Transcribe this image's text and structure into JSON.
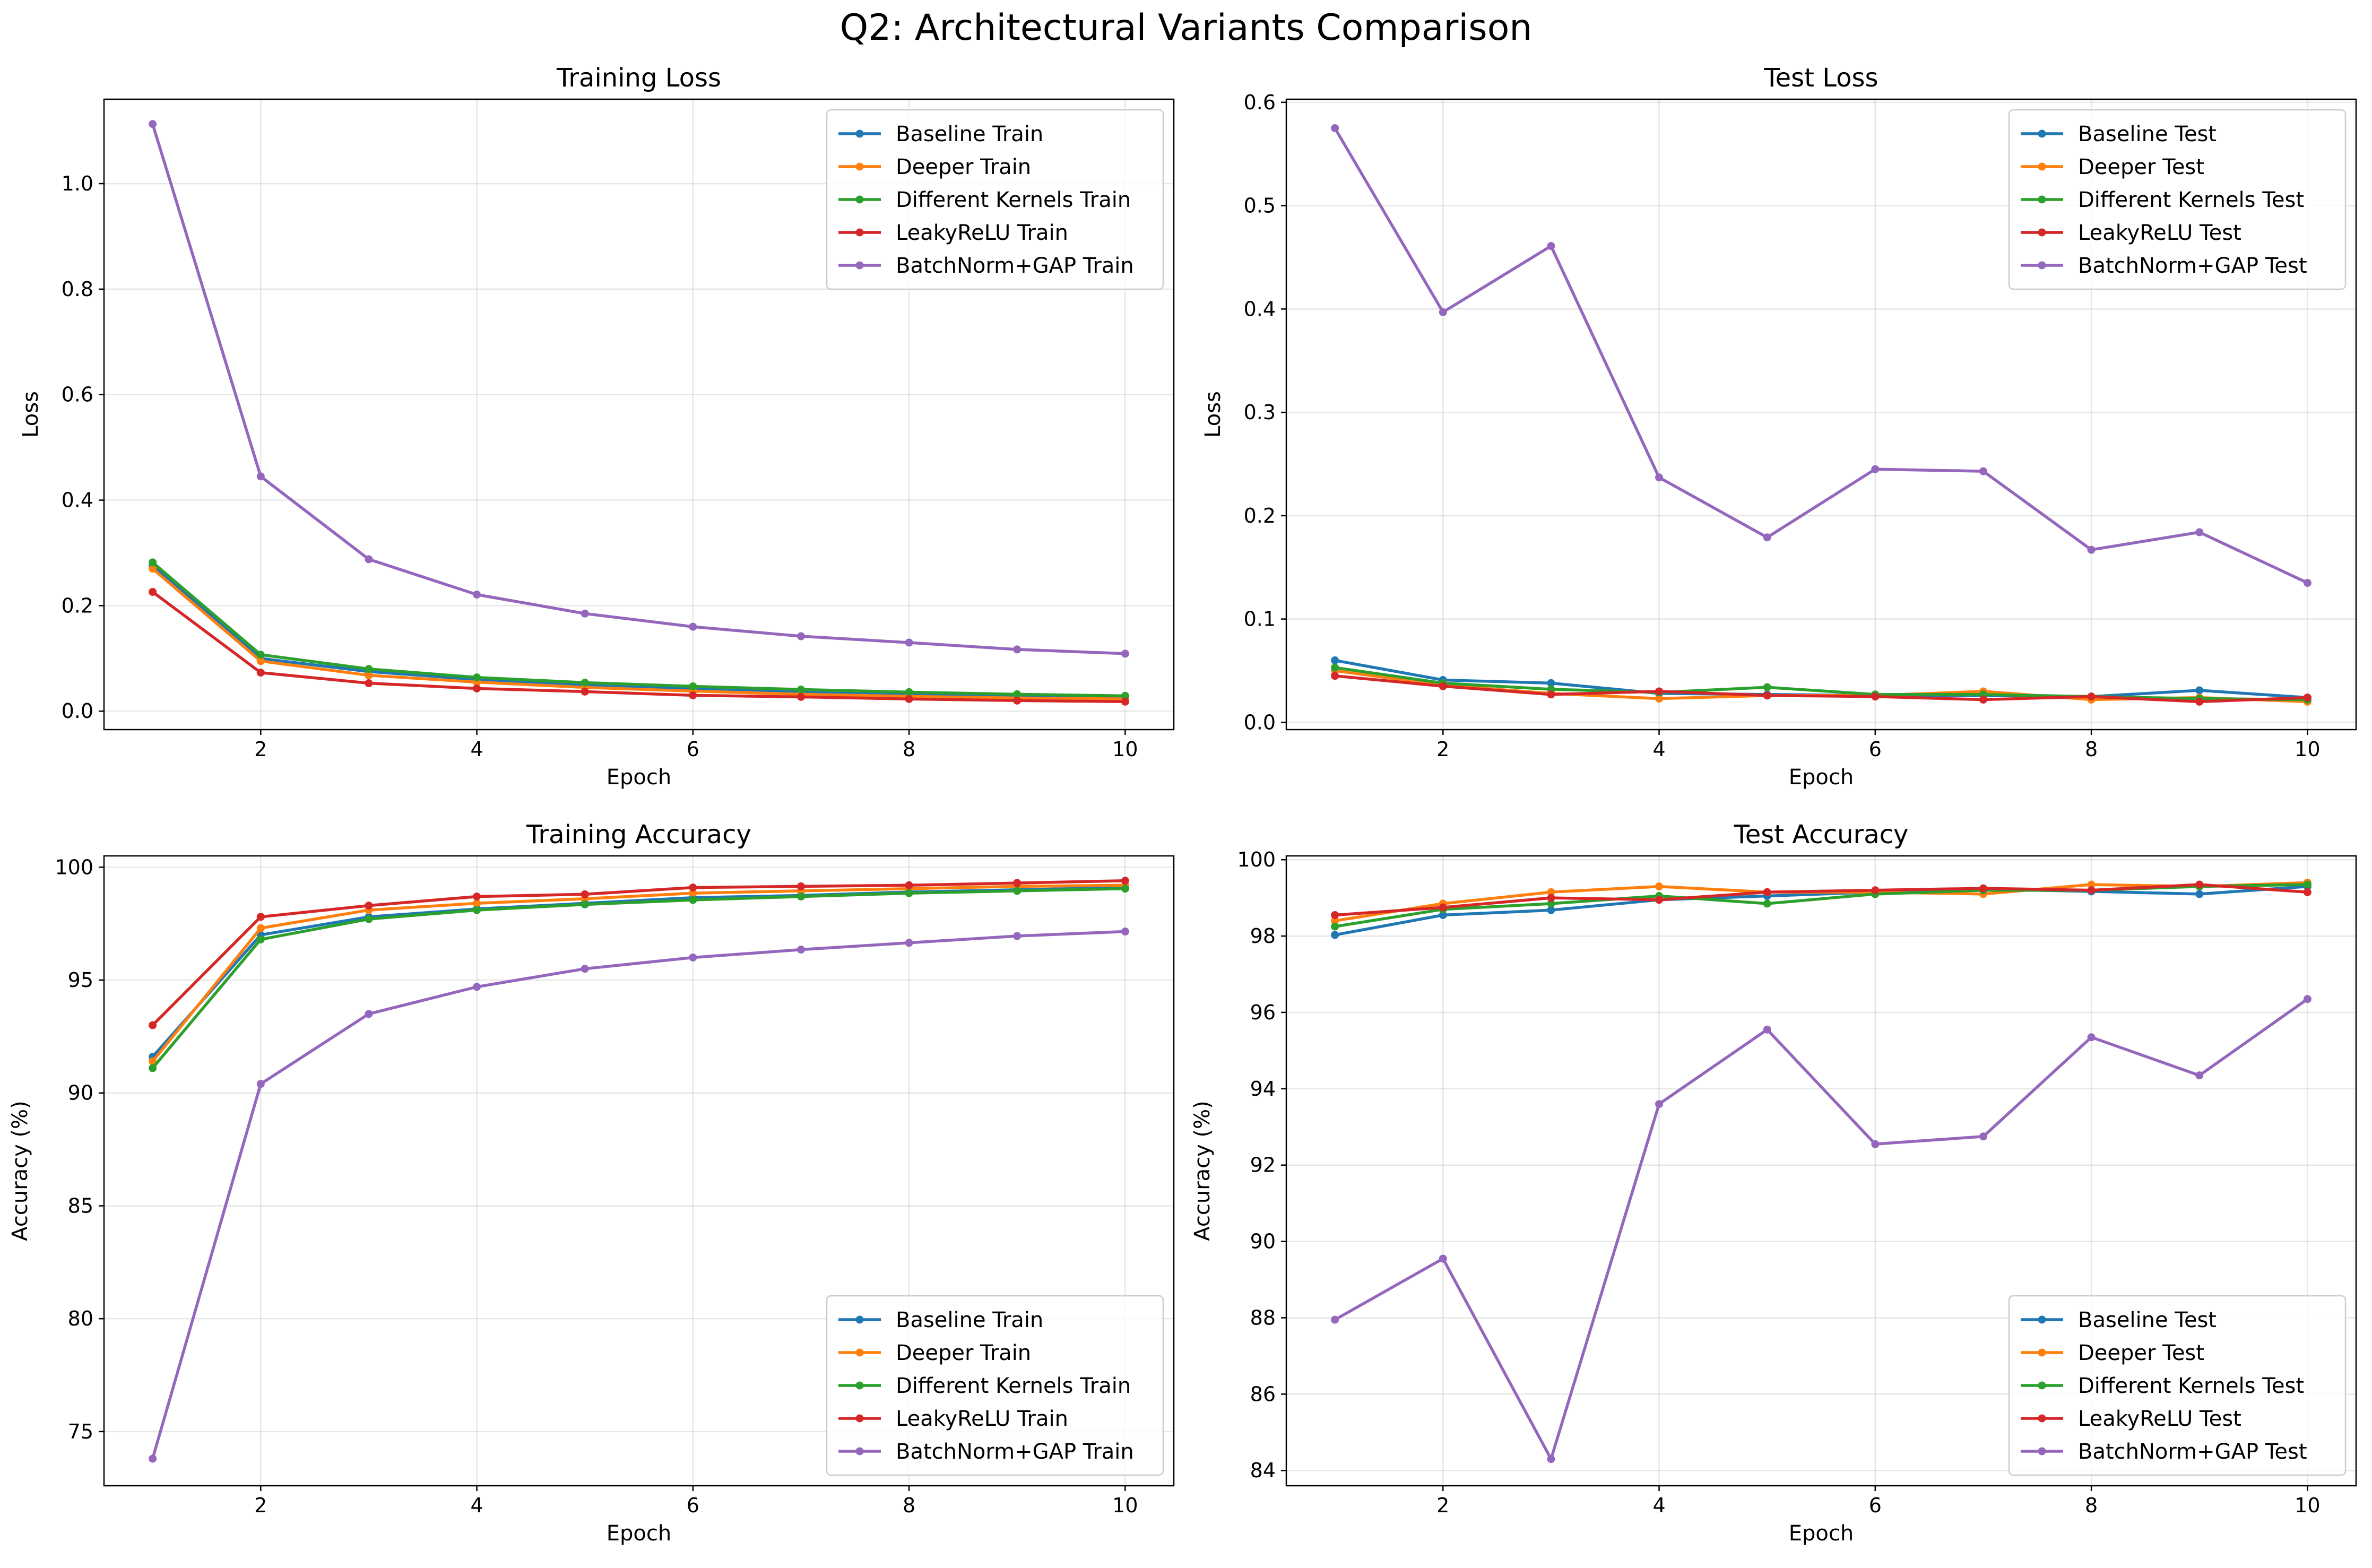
{
  "figure": {
    "title": "Q2: Architectural Variants Comparison"
  },
  "chart_data": [
    {
      "type": "line",
      "title": "Training Loss",
      "xlabel": "Epoch",
      "ylabel": "Loss",
      "x": [
        1,
        2,
        3,
        4,
        5,
        6,
        7,
        8,
        9,
        10
      ],
      "xlim": [
        0.55,
        10.45
      ],
      "ylim": [
        -0.035,
        1.16
      ],
      "xticks": [
        2,
        4,
        6,
        8,
        10
      ],
      "yticks": [
        0.0,
        0.2,
        0.4,
        0.6,
        0.8,
        1.0
      ],
      "ytick_labels": [
        "0.0",
        "0.2",
        "0.4",
        "0.6",
        "0.8",
        "1.0"
      ],
      "grid": true,
      "legend_position": "upper right",
      "series": [
        {
          "name": "Baseline Train",
          "color": "#1f77b4",
          "values": [
            0.275,
            0.1,
            0.075,
            0.06,
            0.05,
            0.043,
            0.037,
            0.032,
            0.028,
            0.025
          ]
        },
        {
          "name": "Deeper Train",
          "color": "#ff7f0e",
          "values": [
            0.27,
            0.095,
            0.068,
            0.055,
            0.045,
            0.038,
            0.032,
            0.028,
            0.025,
            0.023
          ]
        },
        {
          "name": "Different Kernels Train",
          "color": "#2ca02c",
          "values": [
            0.282,
            0.107,
            0.08,
            0.064,
            0.054,
            0.047,
            0.041,
            0.036,
            0.032,
            0.029
          ]
        },
        {
          "name": "LeakyReLU Train",
          "color": "#d62728",
          "values": [
            0.226,
            0.073,
            0.053,
            0.043,
            0.037,
            0.03,
            0.027,
            0.023,
            0.02,
            0.018
          ]
        },
        {
          "name": "BatchNorm+GAP Train",
          "color": "#9467bd",
          "values": [
            1.113,
            0.445,
            0.288,
            0.221,
            0.185,
            0.16,
            0.142,
            0.13,
            0.117,
            0.109
          ]
        }
      ]
    },
    {
      "type": "line",
      "title": "Test Loss",
      "xlabel": "Epoch",
      "ylabel": "Loss",
      "x": [
        1,
        2,
        3,
        4,
        5,
        6,
        7,
        8,
        9,
        10
      ],
      "xlim": [
        0.55,
        10.45
      ],
      "ylim": [
        -0.007,
        0.603
      ],
      "xticks": [
        2,
        4,
        6,
        8,
        10
      ],
      "yticks": [
        0.0,
        0.1,
        0.2,
        0.3,
        0.4,
        0.5,
        0.6
      ],
      "ytick_labels": [
        "0.0",
        "0.1",
        "0.2",
        "0.3",
        "0.4",
        "0.5",
        "0.6"
      ],
      "grid": true,
      "legend_position": "upper right",
      "series": [
        {
          "name": "Baseline Test",
          "color": "#1f77b4",
          "values": [
            0.06,
            0.041,
            0.038,
            0.028,
            0.027,
            0.026,
            0.026,
            0.025,
            0.031,
            0.024
          ]
        },
        {
          "name": "Deeper Test",
          "color": "#ff7f0e",
          "values": [
            0.05,
            0.036,
            0.028,
            0.023,
            0.026,
            0.026,
            0.03,
            0.022,
            0.024,
            0.02
          ]
        },
        {
          "name": "Different Kernels Test",
          "color": "#2ca02c",
          "values": [
            0.053,
            0.038,
            0.032,
            0.029,
            0.034,
            0.027,
            0.027,
            0.025,
            0.023,
            0.022
          ]
        },
        {
          "name": "LeakyReLU Test",
          "color": "#d62728",
          "values": [
            0.045,
            0.035,
            0.027,
            0.03,
            0.026,
            0.025,
            0.022,
            0.025,
            0.02,
            0.024
          ]
        },
        {
          "name": "BatchNorm+GAP Test",
          "color": "#9467bd",
          "values": [
            0.575,
            0.397,
            0.461,
            0.237,
            0.179,
            0.245,
            0.243,
            0.167,
            0.184,
            0.135
          ]
        }
      ]
    },
    {
      "type": "line",
      "title": "Training Accuracy",
      "xlabel": "Epoch",
      "ylabel": "Accuracy (%)",
      "x": [
        1,
        2,
        3,
        4,
        5,
        6,
        7,
        8,
        9,
        10
      ],
      "xlim": [
        0.55,
        10.45
      ],
      "ylim": [
        72.6,
        100.5
      ],
      "xticks": [
        2,
        4,
        6,
        8,
        10
      ],
      "yticks": [
        75,
        80,
        85,
        90,
        95,
        100
      ],
      "ytick_labels": [
        "75",
        "80",
        "85",
        "90",
        "95",
        "100"
      ],
      "grid": true,
      "legend_position": "lower right",
      "series": [
        {
          "name": "Baseline Train",
          "color": "#1f77b4",
          "values": [
            91.6,
            97.0,
            97.8,
            98.15,
            98.4,
            98.65,
            98.75,
            98.9,
            99.0,
            99.1
          ]
        },
        {
          "name": "Deeper Train",
          "color": "#ff7f0e",
          "values": [
            91.4,
            97.3,
            98.1,
            98.4,
            98.6,
            98.85,
            98.95,
            99.05,
            99.15,
            99.2
          ]
        },
        {
          "name": "Different Kernels Train",
          "color": "#2ca02c",
          "values": [
            91.1,
            96.8,
            97.7,
            98.1,
            98.35,
            98.55,
            98.7,
            98.85,
            98.95,
            99.05
          ]
        },
        {
          "name": "LeakyReLU Train",
          "color": "#d62728",
          "values": [
            93.0,
            97.8,
            98.3,
            98.7,
            98.8,
            99.1,
            99.15,
            99.2,
            99.3,
            99.4
          ]
        },
        {
          "name": "BatchNorm+GAP Train",
          "color": "#9467bd",
          "values": [
            73.8,
            90.4,
            93.5,
            94.7,
            95.5,
            96.0,
            96.35,
            96.65,
            96.95,
            97.15
          ]
        }
      ]
    },
    {
      "type": "line",
      "title": "Test Accuracy",
      "xlabel": "Epoch",
      "ylabel": "Accuracy (%)",
      "x": [
        1,
        2,
        3,
        4,
        5,
        6,
        7,
        8,
        9,
        10
      ],
      "xlim": [
        0.55,
        10.45
      ],
      "ylim": [
        83.6,
        100.1
      ],
      "xticks": [
        2,
        4,
        6,
        8,
        10
      ],
      "yticks": [
        84,
        86,
        88,
        90,
        92,
        94,
        96,
        98,
        100
      ],
      "ytick_labels": [
        "84",
        "86",
        "88",
        "90",
        "92",
        "94",
        "96",
        "98",
        "100"
      ],
      "grid": true,
      "legend_position": "lower right",
      "series": [
        {
          "name": "Baseline Test",
          "color": "#1f77b4",
          "values": [
            98.03,
            98.55,
            98.68,
            98.95,
            99.05,
            99.15,
            99.23,
            99.17,
            99.1,
            99.3
          ]
        },
        {
          "name": "Deeper Test",
          "color": "#ff7f0e",
          "values": [
            98.4,
            98.85,
            99.15,
            99.3,
            99.15,
            99.15,
            99.1,
            99.35,
            99.3,
            99.4
          ]
        },
        {
          "name": "Different Kernels Test",
          "color": "#2ca02c",
          "values": [
            98.25,
            98.7,
            98.85,
            99.05,
            98.85,
            99.1,
            99.2,
            99.2,
            99.3,
            99.35
          ]
        },
        {
          "name": "LeakyReLU Test",
          "color": "#d62728",
          "values": [
            98.55,
            98.75,
            99.0,
            98.95,
            99.15,
            99.2,
            99.25,
            99.2,
            99.35,
            99.15
          ]
        },
        {
          "name": "BatchNorm+GAP Test",
          "color": "#9467bd",
          "values": [
            87.95,
            89.55,
            84.3,
            93.6,
            95.55,
            92.55,
            92.75,
            95.35,
            94.35,
            96.35
          ]
        }
      ]
    }
  ]
}
